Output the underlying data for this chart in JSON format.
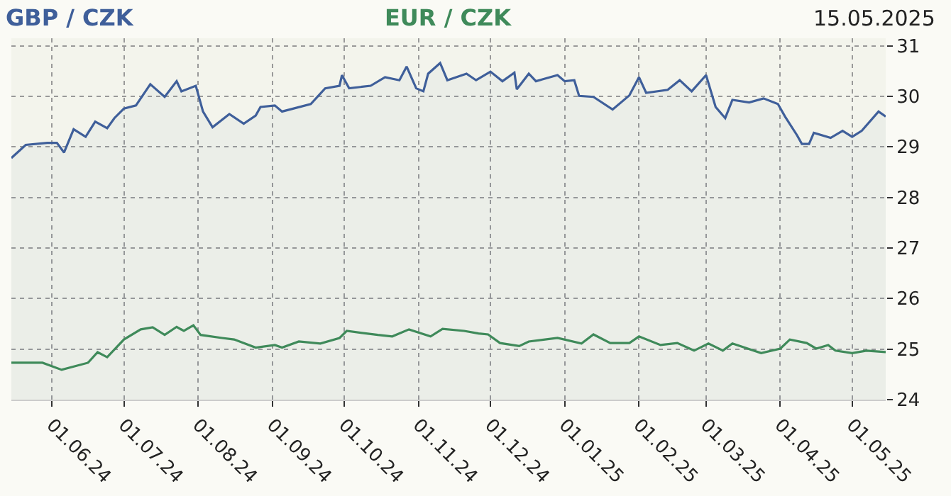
{
  "chart_data": {
    "type": "line",
    "annotations": [
      "15.05.2025"
    ],
    "xlim": [
      "2024-05-15",
      "2025-05-15"
    ],
    "xticks": [
      {
        "value": "2024-06-01",
        "label": "01.06.24"
      },
      {
        "value": "2024-07-01",
        "label": "01.07.24"
      },
      {
        "value": "2024-08-01",
        "label": "01.08.24"
      },
      {
        "value": "2024-09-01",
        "label": "01.09.24"
      },
      {
        "value": "2024-10-01",
        "label": "01.10.24"
      },
      {
        "value": "2024-11-01",
        "label": "01.11.24"
      },
      {
        "value": "2024-12-01",
        "label": "01.12.24"
      },
      {
        "value": "2025-01-01",
        "label": "01.01.25"
      },
      {
        "value": "2025-02-01",
        "label": "01.02.25"
      },
      {
        "value": "2025-03-01",
        "label": "01.03.25"
      },
      {
        "value": "2025-04-01",
        "label": "01.04.25"
      },
      {
        "value": "2025-05-01",
        "label": "01.05.25"
      }
    ],
    "ylim": [
      24,
      31.15
    ],
    "yticks": [
      24,
      25,
      26,
      27,
      28,
      29,
      30,
      31
    ],
    "grid": true,
    "legend": false,
    "series": [
      {
        "name": "GBP / CZK",
        "type": "area",
        "color": "#3f5f9a",
        "x": [
          "2024-05-15",
          "2024-05-21",
          "2024-05-30",
          "2024-06-03",
          "2024-06-06",
          "2024-06-10",
          "2024-06-15",
          "2024-06-19",
          "2024-06-24",
          "2024-06-27",
          "2024-07-01",
          "2024-07-06",
          "2024-07-12",
          "2024-07-18",
          "2024-07-23",
          "2024-07-25",
          "2024-07-31",
          "2024-08-03",
          "2024-08-07",
          "2024-08-14",
          "2024-08-20",
          "2024-08-25",
          "2024-08-27",
          "2024-09-02",
          "2024-09-05",
          "2024-09-17",
          "2024-09-23",
          "2024-09-29",
          "2024-09-30",
          "2024-10-03",
          "2024-10-12",
          "2024-10-18",
          "2024-10-24",
          "2024-10-27",
          "2024-10-31",
          "2024-11-03",
          "2024-11-05",
          "2024-11-10",
          "2024-11-13",
          "2024-11-21",
          "2024-11-25",
          "2024-12-01",
          "2024-12-06",
          "2024-12-11",
          "2024-12-12",
          "2024-12-17",
          "2024-12-20",
          "2024-12-29",
          "2025-01-01",
          "2025-01-05",
          "2025-01-07",
          "2025-01-13",
          "2025-01-21",
          "2025-01-28",
          "2025-02-01",
          "2025-02-04",
          "2025-02-13",
          "2025-02-18",
          "2025-02-23",
          "2025-03-01",
          "2025-03-05",
          "2025-03-09",
          "2025-03-12",
          "2025-03-19",
          "2025-03-25",
          "2025-03-31",
          "2025-04-03",
          "2025-04-08",
          "2025-04-10",
          "2025-04-13",
          "2025-04-15",
          "2025-04-22",
          "2025-04-27",
          "2025-05-01",
          "2025-05-05",
          "2025-05-12",
          "2025-05-15"
        ],
        "values": [
          28.78,
          29.04,
          29.08,
          29.08,
          28.89,
          29.35,
          29.2,
          29.5,
          29.37,
          29.57,
          29.76,
          29.82,
          30.24,
          29.99,
          30.3,
          30.1,
          30.21,
          29.7,
          29.39,
          29.65,
          29.46,
          29.62,
          29.79,
          29.82,
          29.7,
          29.85,
          30.16,
          30.21,
          30.42,
          30.16,
          30.21,
          30.38,
          30.32,
          30.59,
          30.16,
          30.1,
          30.45,
          30.66,
          30.32,
          30.45,
          30.32,
          30.49,
          30.3,
          30.47,
          30.14,
          30.45,
          30.3,
          30.42,
          30.3,
          30.32,
          30.01,
          29.99,
          29.74,
          30.02,
          30.38,
          30.07,
          30.13,
          30.32,
          30.1,
          30.42,
          29.79,
          29.57,
          29.93,
          29.88,
          29.96,
          29.85,
          29.6,
          29.23,
          29.06,
          29.06,
          29.28,
          29.18,
          29.32,
          29.2,
          29.32,
          29.7,
          29.6
        ]
      },
      {
        "name": "EUR / CZK",
        "color": "#3f8a5a",
        "x": [
          "2024-05-15",
          "2024-05-28",
          "2024-06-05",
          "2024-06-16",
          "2024-06-20",
          "2024-06-24",
          "2024-07-01",
          "2024-07-08",
          "2024-07-13",
          "2024-07-18",
          "2024-07-23",
          "2024-07-26",
          "2024-07-30",
          "2024-08-02",
          "2024-08-11",
          "2024-08-16",
          "2024-08-25",
          "2024-09-02",
          "2024-09-05",
          "2024-09-12",
          "2024-09-21",
          "2024-09-29",
          "2024-10-02",
          "2024-10-15",
          "2024-10-21",
          "2024-10-28",
          "2024-11-06",
          "2024-11-11",
          "2024-11-20",
          "2024-11-26",
          "2024-11-30",
          "2024-12-05",
          "2024-12-13",
          "2024-12-17",
          "2024-12-29",
          "2025-01-08",
          "2025-01-13",
          "2025-01-20",
          "2025-01-28",
          "2025-02-01",
          "2025-02-10",
          "2025-02-17",
          "2025-02-24",
          "2025-03-02",
          "2025-03-08",
          "2025-03-12",
          "2025-03-24",
          "2025-04-01",
          "2025-04-05",
          "2025-04-12",
          "2025-04-16",
          "2025-04-21",
          "2025-04-24",
          "2025-05-01",
          "2025-05-07",
          "2025-05-15"
        ],
        "values": [
          24.73,
          24.73,
          24.59,
          24.73,
          24.94,
          24.84,
          25.19,
          25.39,
          25.43,
          25.28,
          25.44,
          25.36,
          25.47,
          25.28,
          25.22,
          25.19,
          25.03,
          25.08,
          25.03,
          25.15,
          25.11,
          25.22,
          25.36,
          25.28,
          25.25,
          25.39,
          25.25,
          25.4,
          25.36,
          25.31,
          25.29,
          25.12,
          25.06,
          25.15,
          25.22,
          25.11,
          25.29,
          25.12,
          25.12,
          25.25,
          25.08,
          25.12,
          24.97,
          25.11,
          24.97,
          25.11,
          24.92,
          25.01,
          25.19,
          25.12,
          25.01,
          25.08,
          24.97,
          24.92,
          24.97,
          24.94
        ]
      }
    ]
  }
}
